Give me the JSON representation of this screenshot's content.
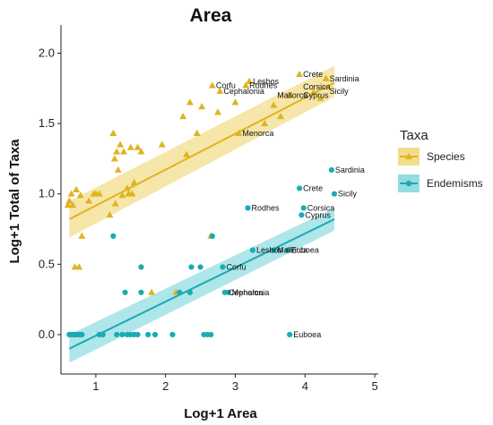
{
  "chart_data": {
    "type": "scatter",
    "title": "Area",
    "xlabel": "Log+1 Area",
    "ylabel": "Log+1 Total of Taxa",
    "xlim": [
      0.5,
      5.05
    ],
    "ylim": [
      -0.28,
      2.2
    ],
    "xticks": [
      "1",
      "2",
      "3",
      "4",
      "5"
    ],
    "yticks": [
      "0.0",
      "0.5",
      "1.0",
      "1.5",
      "2.0"
    ],
    "grid": false,
    "legend": {
      "title": "Taxa",
      "placement": "right",
      "entries": [
        "Species",
        "Endemisms"
      ]
    },
    "series": [
      {
        "name": "Species",
        "marker": "triangle",
        "color": "#e0b31f",
        "band_color": "#f3dd8c",
        "fit": {
          "x": [
            0.62,
            4.42
          ],
          "y": [
            0.82,
            1.79
          ],
          "band_lower": [
            0.69,
            1.69
          ],
          "band_upper": [
            0.95,
            1.91
          ]
        },
        "points": [
          [
            0.6,
            0.92
          ],
          [
            0.62,
            0.95
          ],
          [
            0.65,
            1.0
          ],
          [
            0.67,
            0.92
          ],
          [
            0.7,
            0.48
          ],
          [
            0.72,
            1.03
          ],
          [
            0.76,
            0.48
          ],
          [
            0.78,
            0.99
          ],
          [
            0.8,
            0.7
          ],
          [
            0.9,
            0.95
          ],
          [
            0.97,
            1.0
          ],
          [
            1.0,
            1.0
          ],
          [
            1.05,
            1.0
          ],
          [
            1.2,
            0.85
          ],
          [
            1.25,
            1.43
          ],
          [
            1.27,
            1.25
          ],
          [
            1.28,
            0.93
          ],
          [
            1.3,
            1.3
          ],
          [
            1.32,
            1.17
          ],
          [
            1.35,
            1.35
          ],
          [
            1.38,
            0.99
          ],
          [
            1.4,
            1.3
          ],
          [
            1.45,
            1.04
          ],
          [
            1.47,
            1.0
          ],
          [
            1.5,
            1.33
          ],
          [
            1.52,
            1.0
          ],
          [
            1.55,
            1.08
          ],
          [
            1.6,
            1.33
          ],
          [
            1.65,
            1.3
          ],
          [
            1.8,
            0.3
          ],
          [
            1.95,
            1.35
          ],
          [
            2.15,
            0.3
          ],
          [
            2.25,
            1.55
          ],
          [
            2.3,
            1.28
          ],
          [
            2.35,
            1.65
          ],
          [
            2.45,
            1.43
          ],
          [
            2.52,
            1.62
          ],
          [
            2.65,
            0.7
          ],
          [
            2.67,
            1.77
          ],
          [
            2.75,
            1.58
          ],
          [
            2.78,
            1.73
          ],
          [
            3.0,
            1.65
          ],
          [
            3.05,
            1.43
          ],
          [
            3.15,
            1.77
          ],
          [
            3.2,
            1.8
          ],
          [
            3.42,
            1.5
          ],
          [
            3.55,
            1.63
          ],
          [
            3.65,
            1.55
          ],
          [
            3.78,
            1.7
          ],
          [
            3.92,
            1.85
          ],
          [
            4.12,
            1.72
          ],
          [
            4.22,
            1.68
          ],
          [
            4.3,
            1.82
          ]
        ]
      },
      {
        "name": "Endemisms",
        "marker": "circle",
        "color": "#1aabb5",
        "band_color": "#93dde2",
        "fit": {
          "x": [
            0.62,
            4.42
          ],
          "y": [
            -0.1,
            0.82
          ],
          "band_lower": [
            -0.2,
            0.74
          ],
          "band_upper": [
            0.0,
            0.9
          ]
        },
        "points": [
          [
            0.62,
            0.0
          ],
          [
            0.65,
            0.0
          ],
          [
            0.68,
            0.0
          ],
          [
            0.7,
            0.0
          ],
          [
            0.72,
            0.0
          ],
          [
            0.75,
            0.0
          ],
          [
            0.78,
            0.0
          ],
          [
            0.8,
            0.0
          ],
          [
            1.05,
            0.0
          ],
          [
            1.1,
            0.0
          ],
          [
            1.25,
            0.7
          ],
          [
            1.3,
            0.0
          ],
          [
            1.38,
            0.0
          ],
          [
            1.42,
            0.3
          ],
          [
            1.45,
            0.0
          ],
          [
            1.5,
            0.0
          ],
          [
            1.55,
            0.0
          ],
          [
            1.6,
            0.0
          ],
          [
            1.65,
            0.3
          ],
          [
            1.65,
            0.48
          ],
          [
            1.75,
            0.0
          ],
          [
            1.85,
            0.0
          ],
          [
            2.1,
            0.0
          ],
          [
            2.2,
            0.3
          ],
          [
            2.35,
            0.3
          ],
          [
            2.37,
            0.48
          ],
          [
            2.5,
            0.48
          ],
          [
            2.55,
            0.0
          ],
          [
            2.6,
            0.0
          ],
          [
            2.65,
            0.0
          ],
          [
            2.67,
            0.7
          ],
          [
            2.82,
            0.48
          ],
          [
            2.85,
            0.3
          ],
          [
            2.9,
            0.3
          ],
          [
            3.18,
            0.9
          ],
          [
            3.25,
            0.6
          ],
          [
            3.55,
            0.6
          ],
          [
            3.75,
            0.6
          ],
          [
            3.78,
            0.0
          ],
          [
            3.92,
            1.04
          ],
          [
            3.95,
            0.85
          ],
          [
            3.98,
            0.9
          ],
          [
            4.38,
            1.17
          ],
          [
            4.42,
            1.0
          ]
        ]
      }
    ],
    "annotations": [
      {
        "text": "Lesbos",
        "x": 3.2,
        "y": 1.8,
        "series": "Species"
      },
      {
        "text": "Corfu",
        "x": 2.67,
        "y": 1.77,
        "series": "Species"
      },
      {
        "text": "Rodhes",
        "x": 3.15,
        "y": 1.77,
        "series": "Species"
      },
      {
        "text": "Crete",
        "x": 3.92,
        "y": 1.85,
        "series": "Species"
      },
      {
        "text": "Sardinia",
        "x": 4.3,
        "y": 1.82,
        "series": "Species"
      },
      {
        "text": "Corsica",
        "x": 3.92,
        "y": 1.76,
        "series": "Species"
      },
      {
        "text": "Sicily",
        "x": 4.3,
        "y": 1.73,
        "series": "Species"
      },
      {
        "text": "Cyprus",
        "x": 3.92,
        "y": 1.7,
        "series": "Species"
      },
      {
        "text": "Cephalonia",
        "x": 2.78,
        "y": 1.73,
        "series": "Species"
      },
      {
        "text": "Mallorca",
        "x": 3.55,
        "y": 1.7,
        "series": "Species"
      },
      {
        "text": "Menorca",
        "x": 3.05,
        "y": 1.43,
        "series": "Species"
      },
      {
        "text": "Sardinia",
        "x": 4.38,
        "y": 1.17,
        "series": "Endemisms"
      },
      {
        "text": "Crete",
        "x": 3.92,
        "y": 1.04,
        "series": "Endemisms"
      },
      {
        "text": "Sicily",
        "x": 4.42,
        "y": 1.0,
        "series": "Endemisms"
      },
      {
        "text": "Rodhes",
        "x": 3.18,
        "y": 0.9,
        "series": "Endemisms"
      },
      {
        "text": "Corsica",
        "x": 3.98,
        "y": 0.9,
        "series": "Endemisms"
      },
      {
        "text": "Cyprus",
        "x": 3.95,
        "y": 0.85,
        "series": "Endemisms"
      },
      {
        "text": "Euboea",
        "x": 3.75,
        "y": 0.6,
        "series": "Endemisms"
      },
      {
        "text": "Lesbos",
        "x": 3.25,
        "y": 0.6,
        "series": "Endemisms"
      },
      {
        "text": "Mallorca",
        "x": 3.55,
        "y": 0.6,
        "series": "Endemisms"
      },
      {
        "text": "Corfu",
        "x": 2.82,
        "y": 0.48,
        "series": "Endemisms"
      },
      {
        "text": "Cephalonia",
        "x": 2.85,
        "y": 0.3,
        "series": "Endemisms"
      },
      {
        "text": "Menorca",
        "x": 2.9,
        "y": 0.3,
        "series": "Endemisms"
      },
      {
        "text": "Euboea",
        "x": 3.78,
        "y": 0.0,
        "series": "Endemisms"
      }
    ]
  }
}
